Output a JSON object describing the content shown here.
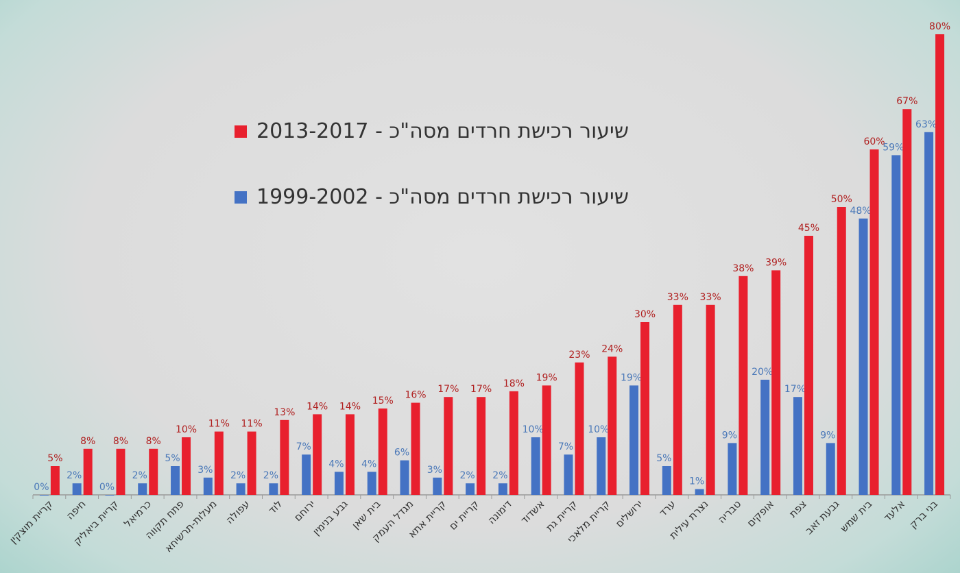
{
  "chart_data": {
    "type": "bar",
    "title": "",
    "xlabel": "",
    "ylabel": "",
    "ylim": [
      0,
      80
    ],
    "grid": false,
    "legend_placement": "top-center",
    "categories": [
      "קריית מוצקין",
      "חיפה",
      "קריית ביאליק",
      "כרמיאל",
      "פתח תקווה",
      "מעלות-תרשיחא",
      "עפולה",
      "לוד",
      "ירוחם",
      "גבע בנימין",
      "בית שאן",
      "מגדל העמק",
      "קריית אתא",
      "קריית ים",
      "דימונה",
      "אשדוד",
      "קריית גת",
      "קריית מלאכי",
      "ירושלים",
      "ערד",
      "נצרת עילית",
      "טבריה",
      "אופקים",
      "צפת",
      "גבעת זאב",
      "בית שמש",
      "אלעד",
      "בני ברק"
    ],
    "series": [
      {
        "name": "שיעור רכישת חרדים מסה\"כ - 1999-2002",
        "color": "#4472c4",
        "label_color": "#4a78b8",
        "values": [
          0,
          2,
          0,
          2,
          5,
          3,
          2,
          2,
          7,
          4,
          4,
          6,
          3,
          2,
          2,
          10,
          7,
          10,
          19,
          5,
          1,
          9,
          20,
          17,
          9,
          48,
          59,
          63
        ]
      },
      {
        "name": "שיעור רכישת חרדים מסה\"כ - 2013-2017",
        "color": "#e8202e",
        "label_color": "#b02020",
        "values": [
          5,
          8,
          8,
          8,
          10,
          11,
          11,
          13,
          14,
          14,
          15,
          16,
          17,
          17,
          18,
          19,
          23,
          24,
          30,
          33,
          33,
          38,
          39,
          45,
          50,
          60,
          67,
          80
        ]
      }
    ],
    "value_suffix": "%"
  }
}
